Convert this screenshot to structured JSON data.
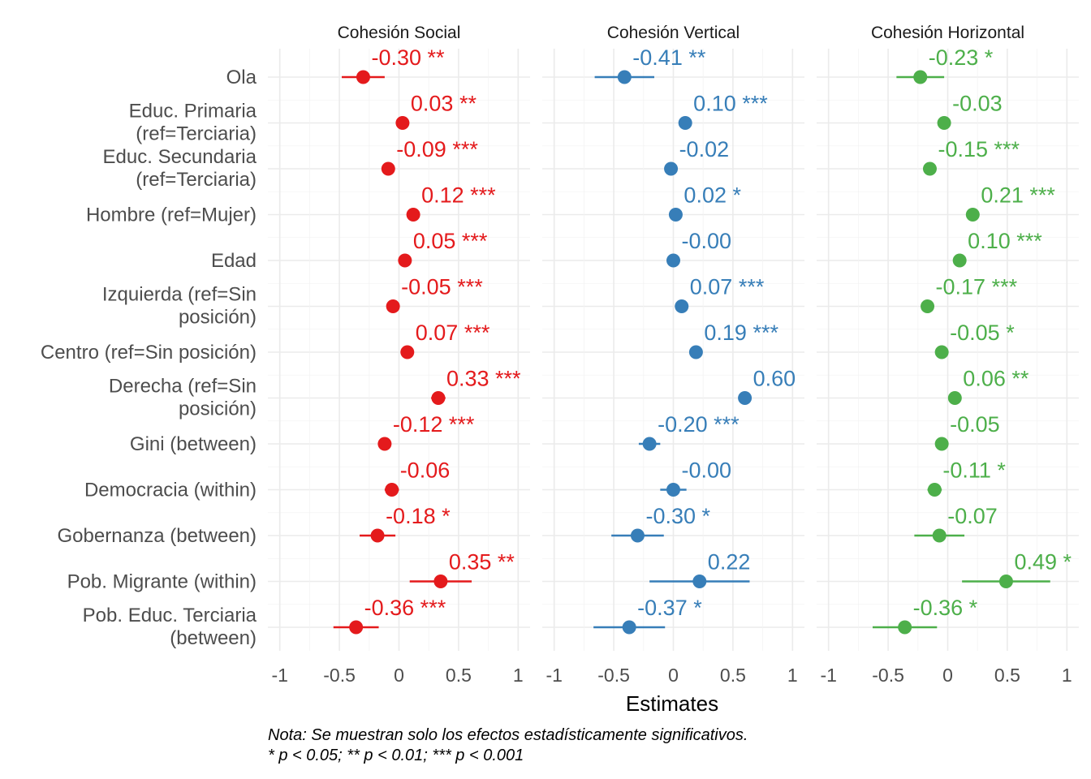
{
  "chart_data": {
    "type": "forest",
    "xlabel": "Estimates",
    "xlim": [
      -1.1,
      1.1
    ],
    "xticks": [
      -1,
      -0.5,
      0,
      0.5,
      1
    ],
    "xtick_labels": [
      "-1",
      "-0.5",
      "0",
      "0.5",
      "1"
    ],
    "grid": true,
    "rows": [
      [
        "Ola"
      ],
      [
        "Educ. Primaria",
        "(ref=Terciaria)"
      ],
      [
        "Educ. Secundaria",
        "(ref=Terciaria)"
      ],
      [
        "Hombre (ref=Mujer)"
      ],
      [
        "Edad"
      ],
      [
        "Izquierda (ref=Sin",
        "posición)"
      ],
      [
        "Centro (ref=Sin posición)"
      ],
      [
        "Derecha (ref=Sin",
        "posición)"
      ],
      [
        "Gini (between)"
      ],
      [
        "Democracia (within)"
      ],
      [
        "Gobernanza (between)"
      ],
      [
        "Pob. Migrante (within)"
      ],
      [
        "Pob. Educ. Terciaria",
        "(between)"
      ]
    ],
    "panels": [
      {
        "title": "Cohesión Social",
        "color": "#e41a1c",
        "estimates": [
          -0.3,
          0.03,
          -0.09,
          0.12,
          0.05,
          -0.05,
          0.07,
          0.33,
          -0.12,
          -0.06,
          -0.18,
          0.35,
          -0.36
        ],
        "ci_low": [
          -0.48,
          0.01,
          -0.12,
          0.1,
          0.03,
          -0.07,
          0.05,
          0.27,
          -0.16,
          -0.12,
          -0.33,
          0.09,
          -0.55
        ],
        "ci_high": [
          -0.12,
          0.05,
          -0.06,
          0.14,
          0.07,
          -0.03,
          0.09,
          0.39,
          -0.08,
          0.0,
          -0.03,
          0.61,
          -0.17
        ],
        "labels": [
          "-0.30 **",
          "0.03 **",
          "-0.09 ***",
          "0.12 ***",
          "0.05 ***",
          "-0.05 ***",
          "0.07 ***",
          "0.33 ***",
          "-0.12 ***",
          "-0.06",
          "-0.18 *",
          "0.35 **",
          "-0.36 ***"
        ]
      },
      {
        "title": "Cohesión Vertical",
        "color": "#377eb8",
        "estimates": [
          -0.41,
          0.1,
          -0.02,
          0.02,
          -0.0,
          0.07,
          0.19,
          0.6,
          -0.2,
          -0.0,
          -0.3,
          0.22,
          -0.37
        ],
        "ci_low": [
          -0.66,
          0.08,
          -0.04,
          0.0,
          -0.02,
          0.05,
          0.17,
          0.57,
          -0.29,
          -0.11,
          -0.52,
          -0.2,
          -0.67
        ],
        "ci_high": [
          -0.16,
          0.12,
          0.0,
          0.04,
          0.02,
          0.09,
          0.21,
          0.63,
          -0.11,
          0.11,
          -0.08,
          0.64,
          -0.07
        ],
        "labels": [
          "-0.41 **",
          "0.10 ***",
          "-0.02",
          "0.02 *",
          "-0.00",
          "0.07 ***",
          "0.19 ***",
          "0.60",
          "-0.20 ***",
          "-0.00",
          "-0.30 *",
          "0.22",
          "-0.37 *"
        ]
      },
      {
        "title": "Cohesión Horizontal",
        "color": "#4daf4a",
        "estimates": [
          -0.23,
          -0.03,
          -0.15,
          0.21,
          0.1,
          -0.17,
          -0.05,
          0.06,
          -0.05,
          -0.11,
          -0.07,
          0.49,
          -0.36
        ],
        "ci_low": [
          -0.43,
          -0.05,
          -0.17,
          0.19,
          0.08,
          -0.19,
          -0.07,
          0.04,
          -0.07,
          -0.17,
          -0.28,
          0.12,
          -0.63
        ],
        "ci_high": [
          -0.03,
          -0.01,
          -0.13,
          0.23,
          0.12,
          -0.15,
          -0.03,
          0.08,
          -0.03,
          -0.05,
          0.14,
          0.86,
          -0.09
        ],
        "labels": [
          "-0.23 *",
          "-0.03",
          "-0.15 ***",
          "0.21 ***",
          "0.10 ***",
          "-0.17 ***",
          "-0.05 *",
          "0.06 **",
          "-0.05",
          "-0.11 *",
          "-0.07",
          "0.49 *",
          "-0.36 *"
        ]
      }
    ]
  },
  "note": {
    "line1": "Nota: Se muestran solo los efectos estadísticamente significativos.",
    "line2": "* p < 0.05; ** p < 0.01; *** p < 0.001"
  }
}
